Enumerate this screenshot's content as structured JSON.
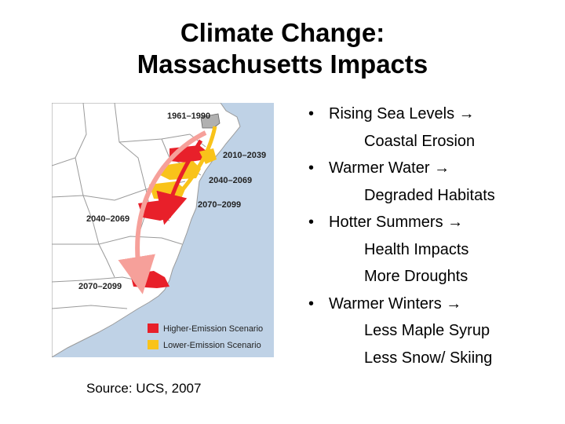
{
  "slide": {
    "title_line1": "Climate Change:",
    "title_line2": "Massachusetts Impacts"
  },
  "map": {
    "periods": {
      "p1961": "1961–1990",
      "p2010": "2010–2039",
      "p2040_right": "2040–2069",
      "p2070_right": "2070–2099",
      "p2040_left": "2040–2069",
      "p2070_left": "2070–2099"
    },
    "legend": {
      "higher": "Higher-Emission Scenario",
      "lower": "Lower-Emission Scenario"
    },
    "colors": {
      "water": "#bfd2e6",
      "land": "#ffffff",
      "higher": "#e8202a",
      "lower": "#f9c31a",
      "baseline": "#b0b0b0",
      "arrow_light": "#f6a09a"
    }
  },
  "bullets": [
    {
      "arrow": "→",
      "text": "Rising Sea Levels",
      "subs": [
        "Coastal Erosion"
      ]
    },
    {
      "arrow": "→",
      "text": "Warmer Water",
      "subs": [
        "Degraded Habitats"
      ]
    },
    {
      "arrow": "→",
      "text": "Hotter Summers",
      "subs": [
        "Health Impacts",
        "More Droughts"
      ]
    },
    {
      "arrow": "→",
      "text": "Warmer Winters",
      "subs": [
        "Less Maple Syrup",
        "Less Snow/ Skiing"
      ]
    }
  ],
  "bullet_symbol": "•",
  "source": "Source: UCS, 2007"
}
